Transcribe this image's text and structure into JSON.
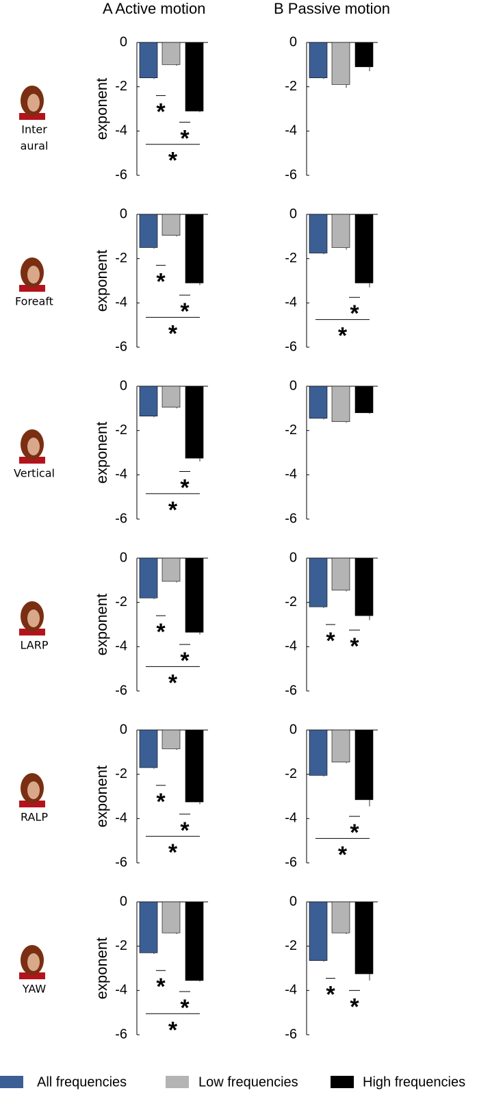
{
  "column_titles": [
    "A  Active motion",
    "B  Passive motion"
  ],
  "row_labels": [
    [
      "Inter",
      "aural"
    ],
    [
      "Foreaft"
    ],
    [
      "Vertical"
    ],
    [
      "LARP"
    ],
    [
      "RALP"
    ],
    [
      "YAW"
    ]
  ],
  "legend": [
    {
      "name": "All frequencies",
      "color": "#3b5f94"
    },
    {
      "name": "Low frequencies",
      "color": "#b4b4b4"
    },
    {
      "name": "High frequencies",
      "color": "#000000"
    }
  ],
  "chart_data": [
    {
      "type": "bar",
      "ylabel": "exponent",
      "values": [
        -1.6,
        -1.0,
        -3.1
      ],
      "errors": [
        0.05,
        0.05,
        0.05
      ],
      "ylim": [
        -6,
        0
      ],
      "yticks": [
        0,
        -2,
        -4,
        -6
      ],
      "significance": [
        {
          "pair": [
            0,
            1
          ],
          "label": "*"
        },
        {
          "pair": [
            1,
            2
          ],
          "label": "*"
        },
        {
          "pair": [
            0,
            2
          ],
          "label": "*"
        }
      ]
    },
    {
      "type": "bar",
      "values": [
        -1.6,
        -1.9,
        -1.1
      ],
      "errors": [
        0.05,
        0.15,
        0.2
      ],
      "ylim": [
        -6,
        0
      ],
      "yticks": [
        0,
        -2,
        -4,
        -6
      ],
      "significance": []
    },
    {
      "type": "bar",
      "ylabel": "exponent",
      "values": [
        -1.5,
        -0.95,
        -3.1
      ],
      "errors": [
        0.05,
        0.05,
        0.1
      ],
      "ylim": [
        -6,
        0
      ],
      "yticks": [
        0,
        -2,
        -4,
        -6
      ],
      "significance": [
        {
          "pair": [
            0,
            1
          ],
          "label": "*"
        },
        {
          "pair": [
            1,
            2
          ],
          "label": "*"
        },
        {
          "pair": [
            0,
            2
          ],
          "label": "*"
        }
      ]
    },
    {
      "type": "bar",
      "values": [
        -1.75,
        -1.5,
        -3.1
      ],
      "errors": [
        0.05,
        0.1,
        0.2
      ],
      "ylim": [
        -6,
        0
      ],
      "yticks": [
        0,
        -2,
        -4,
        -6
      ],
      "significance": [
        {
          "pair": [
            1,
            2
          ],
          "label": "*"
        },
        {
          "pair": [
            0,
            2
          ],
          "label": "*"
        }
      ]
    },
    {
      "type": "bar",
      "ylabel": "exponent",
      "values": [
        -1.35,
        -0.95,
        -3.25
      ],
      "errors": [
        0.05,
        0.05,
        0.15
      ],
      "ylim": [
        -6,
        0
      ],
      "yticks": [
        0,
        -2,
        -4,
        -6
      ],
      "significance": [
        {
          "pair": [
            1,
            2
          ],
          "label": "*"
        },
        {
          "pair": [
            0,
            2
          ],
          "label": "*"
        }
      ]
    },
    {
      "type": "bar",
      "values": [
        -1.45,
        -1.6,
        -1.2
      ],
      "errors": [
        0.05,
        0.05,
        0.05
      ],
      "ylim": [
        -6,
        0
      ],
      "yticks": [
        0,
        -2,
        -4,
        -6
      ],
      "significance": []
    },
    {
      "type": "bar",
      "ylabel": "exponent",
      "values": [
        -1.8,
        -1.05,
        -3.35
      ],
      "errors": [
        0.05,
        0.05,
        0.1
      ],
      "ylim": [
        -6,
        0
      ],
      "yticks": [
        0,
        -2,
        -4,
        -6
      ],
      "significance": [
        {
          "pair": [
            0,
            1
          ],
          "label": "*"
        },
        {
          "pair": [
            1,
            2
          ],
          "label": "*"
        },
        {
          "pair": [
            0,
            2
          ],
          "label": "*"
        }
      ]
    },
    {
      "type": "bar",
      "values": [
        -2.2,
        -1.45,
        -2.6
      ],
      "errors": [
        0.05,
        0.05,
        0.2
      ],
      "ylim": [
        -6,
        0
      ],
      "yticks": [
        0,
        -2,
        -4,
        -6
      ],
      "significance": [
        {
          "pair": [
            0,
            1
          ],
          "label": "*"
        },
        {
          "pair": [
            1,
            2
          ],
          "label": "*"
        }
      ]
    },
    {
      "type": "bar",
      "ylabel": "exponent",
      "values": [
        -1.7,
        -0.85,
        -3.25
      ],
      "errors": [
        0.05,
        0.05,
        0.1
      ],
      "ylim": [
        -6,
        0
      ],
      "yticks": [
        0,
        -2,
        -4,
        -6
      ],
      "significance": [
        {
          "pair": [
            0,
            1
          ],
          "label": "*"
        },
        {
          "pair": [
            1,
            2
          ],
          "label": "*"
        },
        {
          "pair": [
            0,
            2
          ],
          "label": "*"
        }
      ]
    },
    {
      "type": "bar",
      "values": [
        -2.05,
        -1.45,
        -3.15
      ],
      "errors": [
        0.05,
        0.05,
        0.3
      ],
      "ylim": [
        -6,
        0
      ],
      "yticks": [
        0,
        -2,
        -4,
        -6
      ],
      "significance": [
        {
          "pair": [
            1,
            2
          ],
          "label": "*"
        },
        {
          "pair": [
            0,
            2
          ],
          "label": "*"
        }
      ]
    },
    {
      "type": "bar",
      "ylabel": "exponent",
      "values": [
        -2.3,
        -1.4,
        -3.55
      ],
      "errors": [
        0.05,
        0.05,
        0.05
      ],
      "ylim": [
        -6,
        0
      ],
      "yticks": [
        0,
        -2,
        -4,
        -6
      ],
      "significance": [
        {
          "pair": [
            0,
            1
          ],
          "label": "*"
        },
        {
          "pair": [
            1,
            2
          ],
          "label": "*"
        },
        {
          "pair": [
            0,
            2
          ],
          "label": "*"
        }
      ]
    },
    {
      "type": "bar",
      "values": [
        -2.65,
        -1.4,
        -3.25
      ],
      "errors": [
        0.05,
        0.05,
        0.3
      ],
      "ylim": [
        -6,
        0
      ],
      "yticks": [
        0,
        -2,
        -4,
        -6
      ],
      "significance": [
        {
          "pair": [
            0,
            1
          ],
          "label": "*"
        },
        {
          "pair": [
            1,
            2
          ],
          "label": "*"
        }
      ]
    }
  ]
}
